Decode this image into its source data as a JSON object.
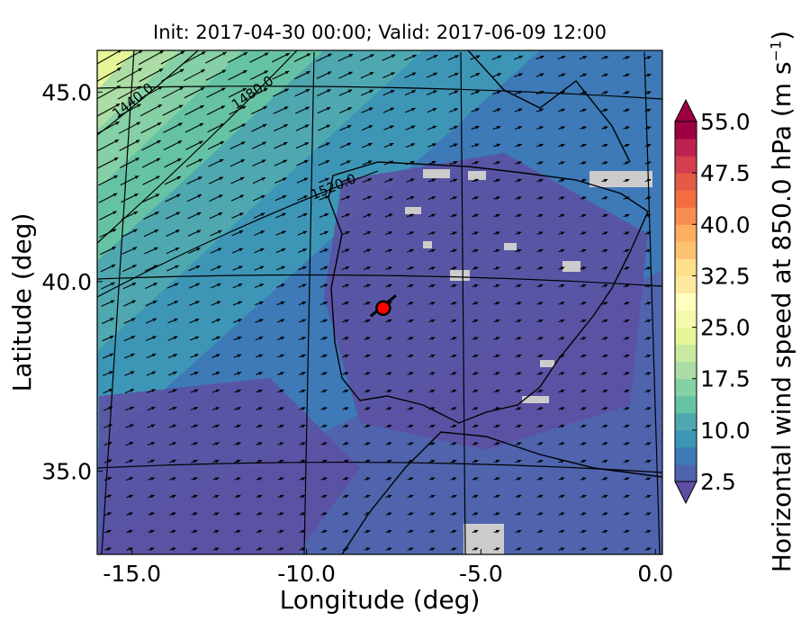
{
  "chart_data": {
    "type": "map-contour-quiver",
    "title": "Init: 2017-04-30 00:00; Valid: 2017-06-09 12:00",
    "xlabel": "Longitude (deg)",
    "ylabel": "Latitude (deg)",
    "xlim": [
      -16,
      0.2
    ],
    "ylim": [
      32.8,
      46.1
    ],
    "x_ticks": [
      "-15.0",
      "-10.0",
      "-5.0",
      "0.0"
    ],
    "y_ticks": [
      "35.0",
      "40.0",
      "45.0"
    ],
    "colorbar": {
      "label_main": "Horizontal wind speed at 850.0 hPa (m s",
      "label_exp": "−1",
      "label_close": ")",
      "ticks": [
        "2.5",
        "10.0",
        "17.5",
        "25.0",
        "32.5",
        "40.0",
        "47.5",
        "55.0"
      ],
      "levels": [
        2.5,
        5.0,
        7.5,
        10.0,
        12.5,
        15.0,
        17.5,
        20.0,
        22.5,
        25.0,
        27.5,
        30.0,
        32.5,
        35.0,
        37.5,
        40.0,
        42.5,
        45.0,
        47.5,
        50.0,
        52.5,
        55.0
      ],
      "colors": [
        "#5e4fa2",
        "#4f64ad",
        "#3d7ab7",
        "#3e96b7",
        "#4fa8b0",
        "#66c2a5",
        "#85d0a4",
        "#abdda4",
        "#c8e9a0",
        "#e6f598",
        "#f5f9ad",
        "#ffffbf",
        "#fee9a0",
        "#fee08b",
        "#fdc26f",
        "#fdae61",
        "#f88d52",
        "#f46d43",
        "#e55a47",
        "#d53e4f",
        "#bd2251",
        "#9e0142"
      ],
      "extend": "both"
    },
    "height_contours": [
      {
        "label": "1440.0"
      },
      {
        "label": "1480.0"
      },
      {
        "label": "1520.0"
      }
    ],
    "marker": {
      "lon": -7.8,
      "lat": 39.3,
      "color": "#ff0000"
    }
  }
}
